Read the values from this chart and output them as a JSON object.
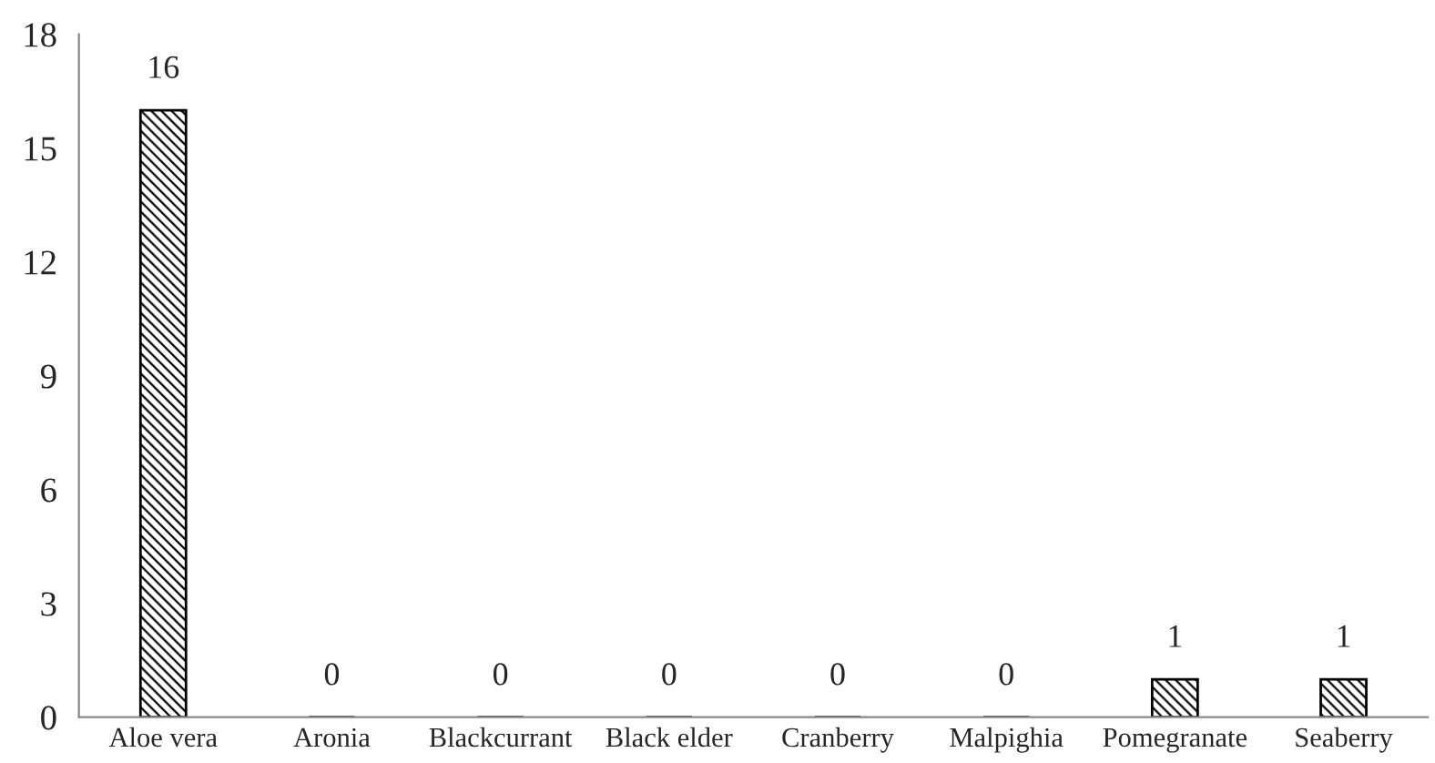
{
  "chart_data": {
    "type": "bar",
    "categories": [
      "Aloe vera",
      "Aronia",
      "Blackcurrant",
      "Black elder",
      "Cranberry",
      "Malpighia",
      "Pomegranate",
      "Seaberry"
    ],
    "values": [
      16,
      0,
      0,
      0,
      0,
      0,
      1,
      1
    ],
    "color": "#000000",
    "ylim": [
      0,
      18
    ],
    "yticks": [
      0,
      3,
      6,
      9,
      12,
      15,
      18
    ],
    "grid": false,
    "data_labels": true
  }
}
